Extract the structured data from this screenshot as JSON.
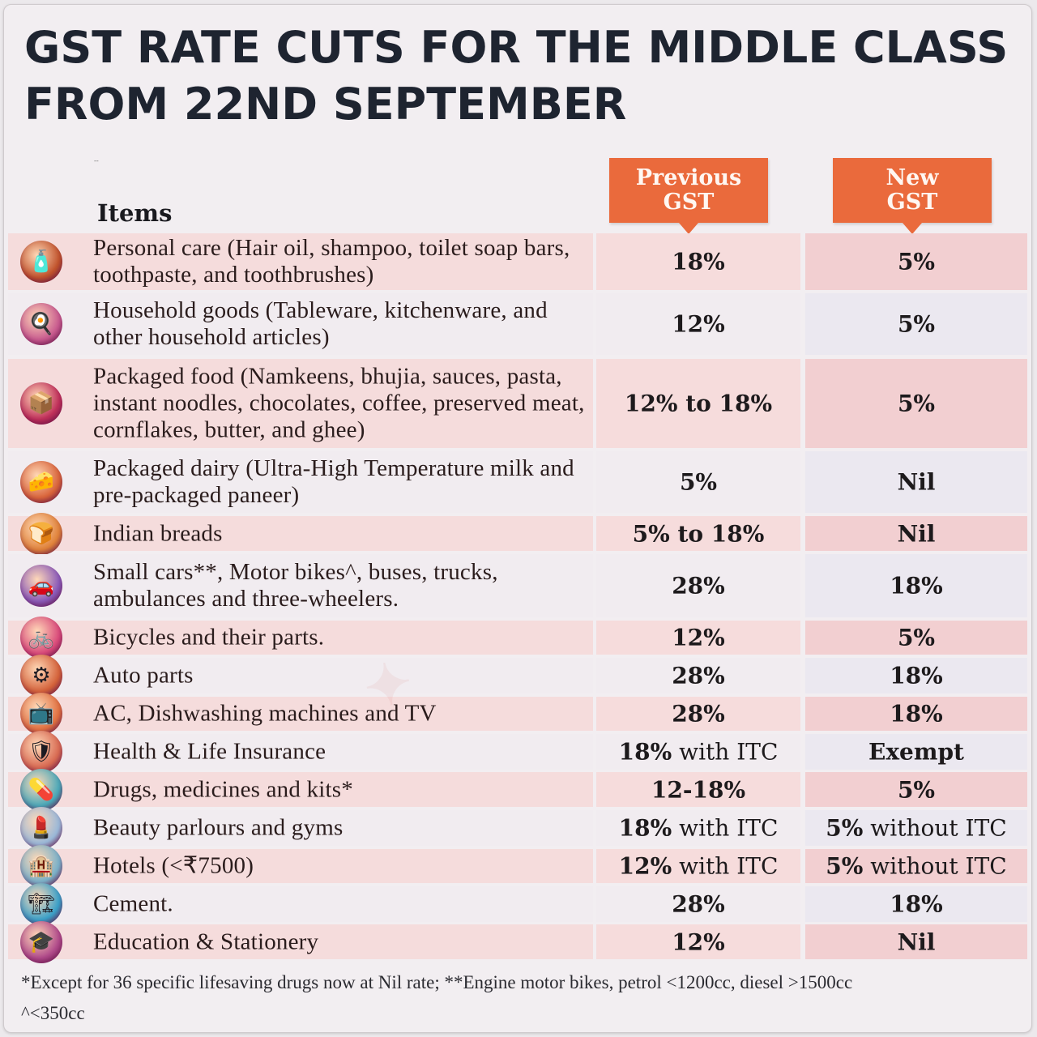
{
  "title": {
    "line1": "GST RATE CUTS FOR THE MIDDLE CLASS",
    "line2": "FROM 22ND SEPTEMBER"
  },
  "stray_mark": "--",
  "header": {
    "items_label": "Items",
    "previous_line1": "Previous",
    "previous_line2": "GST",
    "new_line1": "New",
    "new_line2": "GST"
  },
  "colors": {
    "badge": "#ea6a3c",
    "title": "#1e2430",
    "row_tint": "#f5dcdc",
    "new_col_tint": "#f2cfd1"
  },
  "rows": [
    {
      "icon": "personal-care-bottle-icon",
      "glyph": "🧴",
      "icon_bg": "#c1532c",
      "item": "Personal care (Hair oil, shampoo, toilet soap bars, toothpaste, and toothbrushes)",
      "previous": {
        "bold": "18%",
        "rest": ""
      },
      "new": {
        "bold": "5%",
        "rest": ""
      }
    },
    {
      "icon": "household-kitchenware-icon",
      "glyph": "🍳",
      "icon_bg": "#c85a8e",
      "item": "Household goods (Tableware, kitchenware, and other household articles)",
      "previous": {
        "bold": "12%",
        "rest": ""
      },
      "new": {
        "bold": "5%",
        "rest": ""
      }
    },
    {
      "icon": "packaged-food-box-icon",
      "glyph": "📦",
      "icon_bg": "#c0305a",
      "item": "Packaged food (Namkeens, bhujia, sauces, pasta, instant noodles, chocolates, coffee, preserved meat, cornflakes, butter, and ghee)",
      "previous": {
        "bold": "12% to 18%",
        "rest": ""
      },
      "new": {
        "bold": "5%",
        "rest": ""
      }
    },
    {
      "icon": "dairy-paneer-icon",
      "glyph": "🧀",
      "icon_bg": "#d9643a",
      "item": "Packaged dairy (Ultra-High Temperature milk and pre-packaged paneer)",
      "previous": {
        "bold": "5%",
        "rest": ""
      },
      "new": {
        "bold": "Nil",
        "rest": ""
      }
    },
    {
      "icon": "bread-icon",
      "glyph": "🍞",
      "icon_bg": "#e0823a",
      "item": "Indian breads",
      "previous": {
        "bold": "5% to 18%",
        "rest": ""
      },
      "new": {
        "bold": "Nil",
        "rest": ""
      }
    },
    {
      "icon": "vehicles-icon",
      "glyph": "🚗",
      "icon_bg": "#8a5ab8",
      "item": "Small cars**, Motor bikes^, buses, trucks, ambulances and three-wheelers.",
      "previous": {
        "bold": "28%",
        "rest": ""
      },
      "new": {
        "bold": "18%",
        "rest": ""
      }
    },
    {
      "icon": "bicycle-icon",
      "glyph": "🚲",
      "icon_bg": "#d94a7a",
      "item": "Bicycles and their parts.",
      "previous": {
        "bold": "12%",
        "rest": ""
      },
      "new": {
        "bold": "5%",
        "rest": ""
      }
    },
    {
      "icon": "auto-parts-wheel-icon",
      "glyph": "⚙",
      "icon_bg": "#d4623a",
      "item": "Auto parts",
      "previous": {
        "bold": "28%",
        "rest": ""
      },
      "new": {
        "bold": "18%",
        "rest": ""
      }
    },
    {
      "icon": "appliance-washing-machine-icon",
      "glyph": "📺",
      "icon_bg": "#e07040",
      "item": "AC, Dishwashing machines and TV",
      "previous": {
        "bold": "28%",
        "rest": ""
      },
      "new": {
        "bold": "18%",
        "rest": ""
      }
    },
    {
      "icon": "insurance-shield-heart-icon",
      "glyph": "🛡",
      "icon_bg": "#d86a52",
      "item": "Health & Life Insurance",
      "previous": {
        "bold": "18%",
        "rest": " with ITC"
      },
      "new": {
        "bold": "Exempt",
        "rest": ""
      }
    },
    {
      "icon": "medicine-bottles-icon",
      "glyph": "💊",
      "icon_bg": "#4aa8b8",
      "item": "Drugs, medicines and kits*",
      "previous": {
        "bold": "12-18%",
        "rest": ""
      },
      "new": {
        "bold": "5%",
        "rest": ""
      }
    },
    {
      "icon": "beauty-products-icon",
      "glyph": "💄",
      "icon_bg": "#9ab8d8",
      "item": "Beauty parlours and gyms",
      "previous": {
        "bold": "18%",
        "rest": " with ITC"
      },
      "new": {
        "bold": "5%",
        "rest": " without ITC"
      }
    },
    {
      "icon": "hotel-building-icon",
      "glyph": "🏨",
      "icon_bg": "#7ab0c8",
      "item": "Hotels (<₹7500)",
      "previous": {
        "bold": "12%",
        "rest": " with ITC"
      },
      "new": {
        "bold": "5%",
        "rest": " without ITC"
      }
    },
    {
      "icon": "cement-mixer-icon",
      "glyph": "🏗",
      "icon_bg": "#3aa0c8",
      "item": "Cement.",
      "previous": {
        "bold": "28%",
        "rest": ""
      },
      "new": {
        "bold": "18%",
        "rest": ""
      }
    },
    {
      "icon": "education-graduate-icon",
      "glyph": "🎓",
      "icon_bg": "#b04a8a",
      "item": "Education & Stationery",
      "previous": {
        "bold": "12%",
        "rest": ""
      },
      "new": {
        "bold": "Nil",
        "rest": ""
      }
    }
  ],
  "footnote": {
    "line1": "*Except for 36 specific lifesaving drugs now at Nil rate; **Engine motor bikes, petrol <1200cc, diesel >1500cc",
    "line2": "^<350cc"
  }
}
